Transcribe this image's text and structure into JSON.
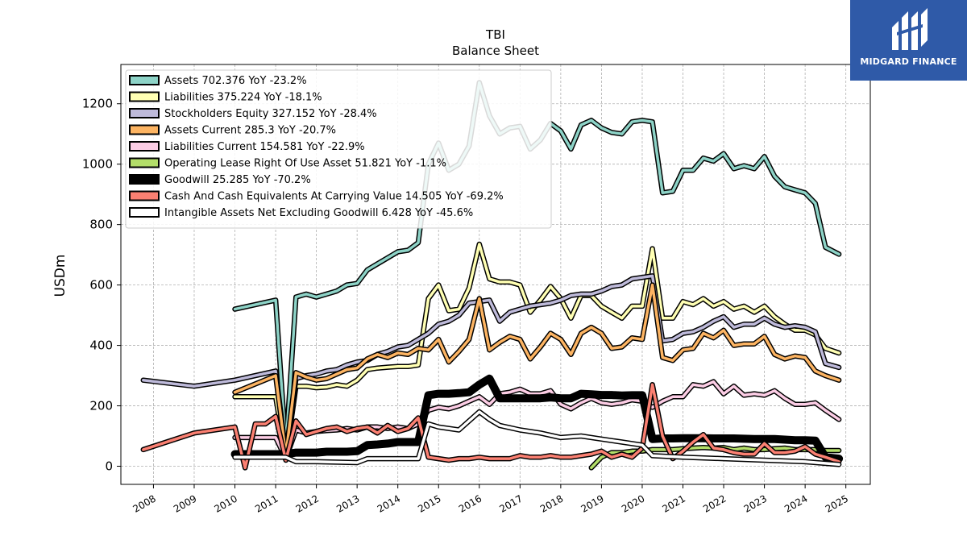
{
  "brand": {
    "name": "MIDGARD FINANCE",
    "color": "#2f5aa8"
  },
  "chart_data": {
    "type": "line",
    "title": "TBI",
    "subtitle": "Balance  Sheet",
    "ylabel": "USDm",
    "xlabel": "",
    "ylim": [
      -60,
      1330
    ],
    "xlim": [
      2007.2,
      2025.6
    ],
    "grid": true,
    "legend_position": "top-left",
    "x_ticks": [
      "2008",
      "2009",
      "2010",
      "2011",
      "2012",
      "2013",
      "2014",
      "2015",
      "2016",
      "2017",
      "2018",
      "2019",
      "2020",
      "2021",
      "2022",
      "2023",
      "2024",
      "2025"
    ],
    "y_ticks": [
      "0",
      "200",
      "400",
      "600",
      "800",
      "1000",
      "1200"
    ],
    "series": [
      {
        "name": "Assets",
        "legend": "Assets  702.376 YoY -23.2%",
        "color": "#8dd3c7",
        "width": 3.5,
        "x": [
          2010.0,
          2011.0,
          2011.25,
          2011.5,
          2011.75,
          2012.0,
          2012.25,
          2012.5,
          2012.75,
          2013.0,
          2013.25,
          2013.5,
          2013.75,
          2014.0,
          2014.25,
          2014.5,
          2014.75,
          2015.0,
          2015.25,
          2015.5,
          2015.75,
          2016.0,
          2016.25,
          2016.5,
          2016.75,
          2017.0,
          2017.25,
          2017.5,
          2017.75,
          2018.0,
          2018.25,
          2018.5,
          2018.75,
          2019.0,
          2019.25,
          2019.5,
          2019.75,
          2020.0,
          2020.25,
          2020.5,
          2020.75,
          2021.0,
          2021.25,
          2021.5,
          2021.75,
          2022.0,
          2022.25,
          2022.5,
          2022.75,
          2023.0,
          2023.25,
          2023.5,
          2023.75,
          2024.0,
          2024.25,
          2024.5,
          2024.83
        ],
        "y": [
          520,
          550,
          60,
          560,
          570,
          560,
          570,
          580,
          600,
          605,
          650,
          670,
          690,
          710,
          715,
          740,
          1000,
          1070,
          980,
          1000,
          1060,
          1270,
          1160,
          1100,
          1120,
          1125,
          1050,
          1080,
          1135,
          1110,
          1050,
          1130,
          1145,
          1120,
          1105,
          1100,
          1140,
          1145,
          1140,
          905,
          910,
          980,
          980,
          1020,
          1010,
          1035,
          985,
          995,
          985,
          1025,
          960,
          925,
          915,
          905,
          870,
          725,
          702
        ]
      },
      {
        "name": "Liabilities",
        "legend": "Liabilities  375.224 YoY -18.1%",
        "color": "#ffffb3",
        "width": 3.5,
        "x": [
          2010.0,
          2011.0,
          2011.25,
          2011.5,
          2011.75,
          2012.0,
          2012.25,
          2012.5,
          2012.75,
          2013.0,
          2013.25,
          2013.5,
          2013.75,
          2014.0,
          2014.25,
          2014.5,
          2014.75,
          2015.0,
          2015.25,
          2015.5,
          2015.75,
          2016.0,
          2016.25,
          2016.5,
          2016.75,
          2017.0,
          2017.25,
          2017.5,
          2017.75,
          2018.0,
          2018.25,
          2018.5,
          2018.75,
          2019.0,
          2019.25,
          2019.5,
          2019.75,
          2020.0,
          2020.25,
          2020.5,
          2020.75,
          2021.0,
          2021.25,
          2021.5,
          2021.75,
          2022.0,
          2022.25,
          2022.5,
          2022.75,
          2023.0,
          2023.25,
          2023.5,
          2023.75,
          2024.0,
          2024.25,
          2024.5,
          2024.83
        ],
        "y": [
          230,
          230,
          25,
          265,
          265,
          260,
          262,
          270,
          265,
          285,
          320,
          325,
          328,
          330,
          330,
          335,
          555,
          600,
          515,
          520,
          590,
          735,
          620,
          610,
          610,
          600,
          510,
          550,
          595,
          555,
          490,
          565,
          565,
          530,
          510,
          490,
          530,
          530,
          720,
          490,
          490,
          545,
          535,
          555,
          530,
          545,
          520,
          530,
          510,
          530,
          495,
          470,
          450,
          450,
          435,
          390,
          375
        ]
      },
      {
        "name": "Stockholders Equity",
        "legend": "Stockholders Equity  327.152 YoY -28.4%",
        "color": "#bebada",
        "width": 3.5,
        "x": [
          2007.75,
          2009.0,
          2010.0,
          2011.0,
          2011.25,
          2011.5,
          2011.75,
          2012.0,
          2012.25,
          2012.5,
          2012.75,
          2013.0,
          2013.25,
          2013.5,
          2013.75,
          2014.0,
          2014.25,
          2014.5,
          2014.75,
          2015.0,
          2015.25,
          2015.5,
          2015.75,
          2016.0,
          2016.25,
          2016.5,
          2016.75,
          2017.0,
          2017.25,
          2017.5,
          2017.75,
          2018.0,
          2018.25,
          2018.5,
          2018.75,
          2019.0,
          2019.25,
          2019.5,
          2019.75,
          2020.0,
          2020.25,
          2020.5,
          2020.75,
          2021.0,
          2021.25,
          2021.5,
          2021.75,
          2022.0,
          2022.25,
          2022.5,
          2022.75,
          2023.0,
          2023.25,
          2023.5,
          2023.75,
          2024.0,
          2024.25,
          2024.5,
          2024.83
        ],
        "y": [
          285,
          265,
          285,
          315,
          40,
          290,
          300,
          305,
          315,
          320,
          335,
          345,
          350,
          370,
          380,
          395,
          400,
          420,
          440,
          470,
          480,
          500,
          540,
          545,
          550,
          480,
          510,
          520,
          530,
          535,
          540,
          550,
          565,
          570,
          570,
          580,
          595,
          600,
          620,
          625,
          630,
          415,
          420,
          440,
          445,
          460,
          480,
          495,
          460,
          470,
          470,
          490,
          470,
          460,
          465,
          460,
          445,
          340,
          327
        ]
      },
      {
        "name": "Assets Current",
        "legend": "Assets Current  285.3 YoY -20.7%",
        "color": "#fdb462",
        "width": 3.5,
        "x": [
          2010.0,
          2011.0,
          2011.25,
          2011.5,
          2011.75,
          2012.0,
          2012.25,
          2012.5,
          2012.75,
          2013.0,
          2013.25,
          2013.5,
          2013.75,
          2014.0,
          2014.25,
          2014.5,
          2014.75,
          2015.0,
          2015.25,
          2015.5,
          2015.75,
          2016.0,
          2016.25,
          2016.5,
          2016.75,
          2017.0,
          2017.25,
          2017.5,
          2017.75,
          2018.0,
          2018.25,
          2018.5,
          2018.75,
          2019.0,
          2019.25,
          2019.5,
          2019.75,
          2020.0,
          2020.25,
          2020.5,
          2020.75,
          2021.0,
          2021.25,
          2021.5,
          2021.75,
          2022.0,
          2022.25,
          2022.5,
          2022.75,
          2023.0,
          2023.25,
          2023.5,
          2023.75,
          2024.0,
          2024.25,
          2024.5,
          2024.83
        ],
        "y": [
          245,
          300,
          35,
          310,
          295,
          285,
          290,
          305,
          320,
          325,
          355,
          370,
          360,
          375,
          370,
          390,
          385,
          420,
          345,
          380,
          420,
          555,
          385,
          410,
          430,
          420,
          355,
          395,
          440,
          420,
          370,
          440,
          460,
          440,
          390,
          395,
          425,
          420,
          600,
          360,
          350,
          385,
          390,
          440,
          425,
          450,
          400,
          405,
          405,
          430,
          370,
          355,
          365,
          360,
          315,
          300,
          285
        ]
      },
      {
        "name": "Liabilities Current",
        "legend": "Liabilities Current  154.581 YoY -22.9%",
        "color": "#fccde5",
        "width": 3.5,
        "x": [
          2010.0,
          2011.0,
          2011.25,
          2011.5,
          2011.75,
          2012.0,
          2012.25,
          2012.5,
          2012.75,
          2013.0,
          2013.25,
          2013.5,
          2013.75,
          2014.0,
          2014.25,
          2014.5,
          2014.75,
          2015.0,
          2015.25,
          2015.5,
          2015.75,
          2016.0,
          2016.25,
          2016.5,
          2016.75,
          2017.0,
          2017.25,
          2017.5,
          2017.75,
          2018.0,
          2018.25,
          2018.5,
          2018.75,
          2019.0,
          2019.25,
          2019.5,
          2019.75,
          2020.0,
          2020.25,
          2020.5,
          2020.75,
          2021.0,
          2021.25,
          2021.5,
          2021.75,
          2022.0,
          2022.25,
          2022.5,
          2022.75,
          2023.0,
          2023.25,
          2023.5,
          2023.75,
          2024.0,
          2024.25,
          2024.5,
          2024.83
        ],
        "y": [
          95,
          95,
          25,
          120,
          110,
          115,
          118,
          120,
          125,
          120,
          130,
          130,
          125,
          130,
          125,
          140,
          185,
          195,
          190,
          200,
          215,
          230,
          205,
          240,
          245,
          255,
          240,
          240,
          250,
          205,
          190,
          210,
          225,
          210,
          205,
          210,
          220,
          215,
          195,
          215,
          230,
          230,
          270,
          265,
          280,
          240,
          265,
          235,
          240,
          235,
          250,
          225,
          205,
          205,
          210,
          185,
          155
        ]
      },
      {
        "name": "Operating Lease Right Of Use Asset",
        "legend": "Operating Lease Right Of Use Asset  51.821 YoY -1.1%",
        "color": "#b3de69",
        "width": 3.5,
        "x": [
          2018.75,
          2019.0,
          2019.25,
          2019.5,
          2019.75,
          2020.0,
          2020.25,
          2020.5,
          2020.75,
          2021.0,
          2021.25,
          2021.5,
          2021.75,
          2022.0,
          2022.25,
          2022.5,
          2022.75,
          2023.0,
          2023.25,
          2023.5,
          2023.75,
          2024.0,
          2024.25,
          2024.5,
          2024.83
        ],
        "y": [
          -5,
          30,
          45,
          45,
          50,
          50,
          55,
          55,
          55,
          58,
          60,
          62,
          60,
          62,
          55,
          60,
          55,
          55,
          58,
          60,
          55,
          55,
          55,
          52,
          52
        ]
      },
      {
        "name": "Goodwill",
        "legend": "Goodwill  25.285 YoY -70.2%",
        "color": "#000000",
        "width": 7,
        "x": [
          2010.0,
          2011.0,
          2011.25,
          2011.5,
          2011.75,
          2012.0,
          2012.25,
          2012.5,
          2012.75,
          2013.0,
          2013.25,
          2013.5,
          2013.75,
          2014.0,
          2014.25,
          2014.5,
          2014.75,
          2015.0,
          2015.25,
          2015.5,
          2015.75,
          2016.0,
          2016.25,
          2016.5,
          2016.75,
          2017.0,
          2017.25,
          2017.5,
          2017.75,
          2018.0,
          2018.25,
          2018.5,
          2018.75,
          2019.0,
          2019.25,
          2019.5,
          2019.75,
          2020.0,
          2020.25,
          2020.5,
          2020.75,
          2021.0,
          2021.25,
          2021.5,
          2021.75,
          2022.0,
          2022.25,
          2022.5,
          2022.75,
          2023.0,
          2023.25,
          2023.5,
          2023.75,
          2024.0,
          2024.25,
          2024.5,
          2024.83
        ],
        "y": [
          40,
          40,
          40,
          45,
          45,
          45,
          48,
          48,
          48,
          50,
          70,
          72,
          75,
          80,
          80,
          80,
          235,
          240,
          240,
          242,
          245,
          270,
          290,
          225,
          225,
          225,
          225,
          225,
          228,
          225,
          225,
          240,
          238,
          236,
          236,
          234,
          235,
          235,
          90,
          92,
          92,
          93,
          93,
          93,
          92,
          92,
          92,
          91,
          90,
          90,
          90,
          88,
          86,
          86,
          85,
          30,
          25
        ]
      },
      {
        "name": "Cash And Cash Equivalents At Carrying Value",
        "legend": "Cash And Cash Equivalents At Carrying Value  14.505 YoY -69.2%",
        "color": "#fb8072",
        "width": 3.5,
        "x": [
          2007.75,
          2009.0,
          2010.0,
          2010.25,
          2010.5,
          2010.75,
          2011.0,
          2011.25,
          2011.5,
          2011.75,
          2012.0,
          2012.25,
          2012.5,
          2012.75,
          2013.0,
          2013.25,
          2013.5,
          2013.75,
          2014.0,
          2014.25,
          2014.5,
          2014.75,
          2015.0,
          2015.25,
          2015.5,
          2015.75,
          2016.0,
          2016.25,
          2016.5,
          2016.75,
          2017.0,
          2017.25,
          2017.5,
          2017.75,
          2018.0,
          2018.25,
          2018.5,
          2018.75,
          2019.0,
          2019.25,
          2019.5,
          2019.75,
          2020.0,
          2020.25,
          2020.5,
          2020.75,
          2021.0,
          2021.25,
          2021.5,
          2021.75,
          2022.0,
          2022.25,
          2022.5,
          2022.75,
          2023.0,
          2023.25,
          2023.5,
          2023.75,
          2024.0,
          2024.25,
          2024.5,
          2024.83
        ],
        "y": [
          55,
          110,
          130,
          -5,
          140,
          140,
          165,
          20,
          150,
          105,
          115,
          125,
          130,
          115,
          125,
          130,
          110,
          135,
          115,
          125,
          160,
          30,
          25,
          20,
          25,
          25,
          30,
          25,
          25,
          25,
          35,
          30,
          30,
          35,
          30,
          30,
          35,
          40,
          50,
          30,
          40,
          30,
          60,
          270,
          100,
          25,
          50,
          80,
          105,
          60,
          55,
          45,
          40,
          40,
          75,
          45,
          45,
          50,
          65,
          40,
          30,
          15
        ]
      },
      {
        "name": "Intangible Assets Net Excluding Goodwill",
        "legend": "Intangible Assets Net Excluding Goodwill  6.428 YoY -45.6%",
        "color": "#ffffff",
        "width": 3.5,
        "x": [
          2010.0,
          2011.0,
          2011.25,
          2011.5,
          2012.0,
          2013.0,
          2013.25,
          2014.0,
          2014.5,
          2014.75,
          2015.0,
          2015.5,
          2016.0,
          2016.25,
          2016.5,
          2017.0,
          2017.5,
          2018.0,
          2018.5,
          2019.0,
          2019.5,
          2020.0,
          2020.25,
          2021.0,
          2022.0,
          2023.0,
          2024.0,
          2024.83
        ],
        "y": [
          30,
          30,
          30,
          15,
          15,
          12,
          25,
          25,
          25,
          140,
          130,
          120,
          180,
          155,
          135,
          120,
          110,
          95,
          100,
          90,
          80,
          70,
          35,
          30,
          25,
          20,
          15,
          6
        ]
      }
    ]
  }
}
